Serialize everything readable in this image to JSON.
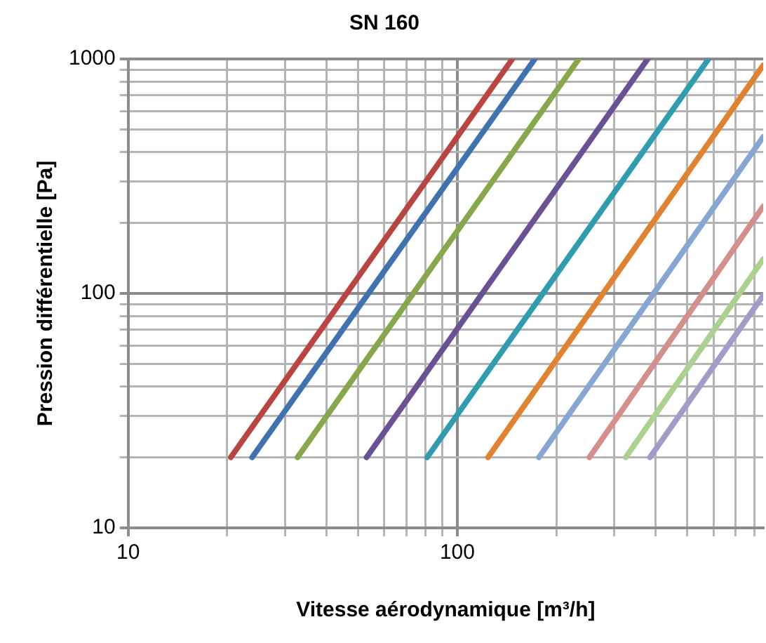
{
  "chart_data": {
    "type": "line",
    "title": "SN 160",
    "xlabel": "Vitesse aérodynamique [m³/h]",
    "ylabel": "Pression différentielle [Pa]",
    "log": "xy",
    "grid": true,
    "xlim": [
      10,
      850
    ],
    "ylim": [
      10,
      1000
    ],
    "xticks": [
      10,
      {
        "value": 20,
        "label": null
      },
      {
        "value": 30,
        "label": null
      },
      {
        "value": 40,
        "label": null
      },
      {
        "value": 50,
        "label": null
      },
      {
        "value": 60,
        "label": null
      },
      {
        "value": 70,
        "label": null
      },
      {
        "value": 80,
        "label": null
      },
      {
        "value": 90,
        "label": null
      },
      100,
      {
        "value": 200,
        "label": null
      },
      {
        "value": 300,
        "label": null
      },
      {
        "value": 400,
        "label": null
      },
      {
        "value": 500,
        "label": null
      },
      {
        "value": 600,
        "label": null
      },
      {
        "value": 700,
        "label": null
      },
      {
        "value": 800,
        "label": null
      }
    ],
    "yticks": [
      10,
      {
        "value": 20,
        "label": null
      },
      {
        "value": 30,
        "label": null
      },
      {
        "value": 40,
        "label": null
      },
      {
        "value": 50,
        "label": null
      },
      {
        "value": 60,
        "label": null
      },
      {
        "value": 70,
        "label": null
      },
      {
        "value": 80,
        "label": null
      },
      {
        "value": 90,
        "label": null
      },
      100,
      {
        "value": 200,
        "label": null
      },
      {
        "value": 300,
        "label": null
      },
      {
        "value": 400,
        "label": null
      },
      {
        "value": 500,
        "label": null
      },
      {
        "value": 600,
        "label": null
      },
      {
        "value": 700,
        "label": null
      },
      {
        "value": 800,
        "label": null
      },
      {
        "value": 900,
        "label": null
      },
      1000
    ],
    "series": [
      {
        "color": "#b94441",
        "x": [
          20.5,
          147
        ],
        "values": [
          20,
          1000
        ]
      },
      {
        "color": "#3f72af",
        "x": [
          23.8,
          172
        ],
        "values": [
          20,
          1000
        ]
      },
      {
        "color": "#86a84a",
        "x": [
          32.7,
          234
        ],
        "values": [
          20,
          1000
        ]
      },
      {
        "color": "#6a5193",
        "x": [
          53,
          379
        ],
        "values": [
          20,
          1000
        ]
      },
      {
        "color": "#2f9cb0",
        "x": [
          81,
          580
        ],
        "values": [
          20,
          1000
        ]
      },
      {
        "color": "#e0822f",
        "x": [
          124,
          850
        ],
        "values": [
          20,
          940
        ]
      },
      {
        "color": "#86a7d3",
        "x": [
          177,
          850
        ],
        "values": [
          20,
          465
        ]
      },
      {
        "color": "#d48f8d",
        "x": [
          252,
          850
        ],
        "values": [
          20,
          235
        ]
      },
      {
        "color": "#acd08e",
        "x": [
          325,
          850
        ],
        "values": [
          20,
          140
        ]
      },
      {
        "color": "#a49bc8",
        "x": [
          385,
          850
        ],
        "values": [
          20,
          98
        ]
      }
    ]
  }
}
